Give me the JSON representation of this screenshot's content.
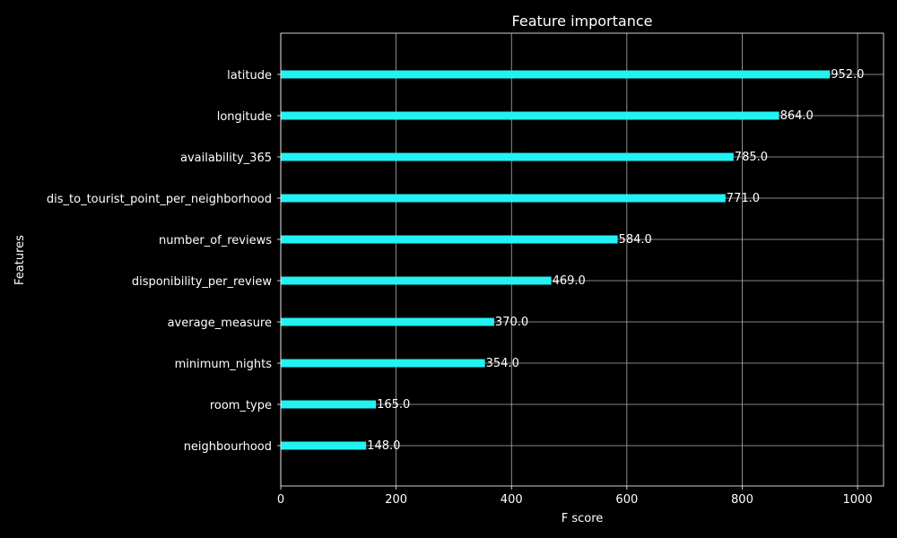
{
  "chart_data": {
    "type": "bar",
    "orientation": "horizontal",
    "title": "Feature importance",
    "xlabel": "F score",
    "ylabel": "Features",
    "categories": [
      "latitude",
      "longitude",
      "availability_365",
      "dis_to_tourist_point_per_neighborhood",
      "number_of_reviews",
      "disponibility_per_review",
      "average_measure",
      "minimum_nights",
      "room_type",
      "neighbourhood"
    ],
    "values": [
      952,
      864,
      785,
      771,
      584,
      469,
      370,
      354,
      165,
      148
    ],
    "value_labels": [
      "952.0",
      "864.0",
      "785.0",
      "771.0",
      "584.0",
      "469.0",
      "370.0",
      "354.0",
      "165.0",
      "148.0"
    ],
    "xlim": [
      0,
      1045
    ],
    "xticks": [
      0,
      200,
      400,
      600,
      800,
      1000
    ],
    "grid": true,
    "colors": {
      "background": "#000000",
      "bar": "#22f2f2",
      "grid": "#b0b0b0",
      "text": "#ffffff"
    }
  }
}
